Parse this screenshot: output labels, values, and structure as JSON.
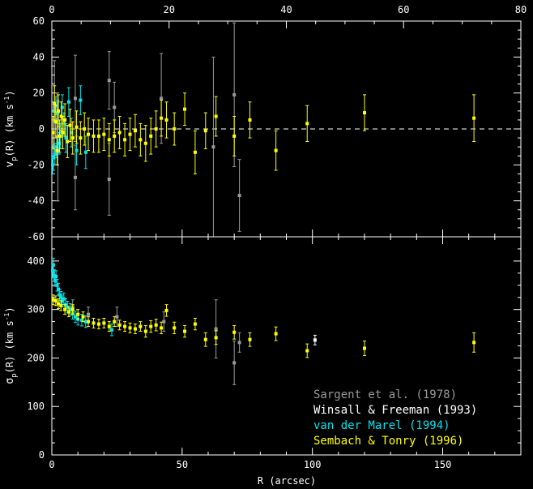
{
  "chart_data": [
    {
      "type": "scatter",
      "panel": "top",
      "ylabel_parts": {
        "main": "v",
        "sub": "p",
        "rest": "(R) (km s",
        "sup": "-1",
        "close": ")"
      },
      "xlim": [
        0,
        180
      ],
      "ylim": [
        -60,
        60
      ],
      "top_axis": {
        "xlim": [
          0,
          80
        ],
        "ticks": [
          "0",
          "20",
          "40",
          "60",
          "80"
        ]
      },
      "x_ticks": [
        0,
        50,
        100,
        150
      ],
      "y_ticks": [
        "-60",
        "-40",
        "-20",
        "0",
        "20",
        "40",
        "60"
      ],
      "reference_line": {
        "y": 0,
        "style": "dashed"
      },
      "series": [
        {
          "color": "#9a9a9a",
          "points": [
            {
              "x": 1,
              "y": 12,
              "e": 26
            },
            {
              "x": 2,
              "y": 5,
              "e": 15
            },
            {
              "x": 2.3,
              "y": -12,
              "e": 28
            },
            {
              "x": 9,
              "y": 17,
              "e": 24
            },
            {
              "x": 9,
              "y": -27,
              "e": 18
            },
            {
              "x": 22,
              "y": 27,
              "e": 16
            },
            {
              "x": 22,
              "y": -28,
              "e": 20
            },
            {
              "x": 24,
              "y": 12,
              "e": 14
            },
            {
              "x": 42,
              "y": 17,
              "e": 25
            },
            {
              "x": 62,
              "y": -10,
              "e": 50
            },
            {
              "x": 70,
              "y": 19,
              "e": 40
            },
            {
              "x": 72,
              "y": -37,
              "e": 20
            }
          ]
        },
        {
          "color": "#00e5ee",
          "points": [
            {
              "x": 0.3,
              "y": -20,
              "e": 5
            },
            {
              "x": 0.6,
              "y": -16,
              "e": 7
            },
            {
              "x": 0.9,
              "y": 10,
              "e": 5
            },
            {
              "x": 1.2,
              "y": -14,
              "e": 6
            },
            {
              "x": 1.5,
              "y": 13,
              "e": 5
            },
            {
              "x": 1.9,
              "y": -10,
              "e": 6
            },
            {
              "x": 2.3,
              "y": 9,
              "e": 6
            },
            {
              "x": 2.8,
              "y": -8,
              "e": 6
            },
            {
              "x": 3.4,
              "y": -4,
              "e": 7
            },
            {
              "x": 4,
              "y": 12,
              "e": 7
            },
            {
              "x": 4.6,
              "y": 3,
              "e": 6
            },
            {
              "x": 5.4,
              "y": -5,
              "e": 8
            },
            {
              "x": 6.5,
              "y": 15,
              "e": 8
            },
            {
              "x": 7.5,
              "y": -2,
              "e": 8
            },
            {
              "x": 9.5,
              "y": -12,
              "e": 8
            },
            {
              "x": 11,
              "y": 16,
              "e": 8
            },
            {
              "x": 13,
              "y": -13,
              "e": 9
            }
          ]
        },
        {
          "color": "#ffff00",
          "points": [
            {
              "x": 0.5,
              "y": -2,
              "e": 9
            },
            {
              "x": 1,
              "y": 14,
              "e": 10
            },
            {
              "x": 1.5,
              "y": 4,
              "e": 9
            },
            {
              "x": 2,
              "y": -12,
              "e": 8
            },
            {
              "x": 2.5,
              "y": 10,
              "e": 9
            },
            {
              "x": 3,
              "y": -4,
              "e": 9
            },
            {
              "x": 3.6,
              "y": 7,
              "e": 8
            },
            {
              "x": 4.2,
              "y": -2,
              "e": 9
            },
            {
              "x": 5,
              "y": 5,
              "e": 9
            },
            {
              "x": 6,
              "y": -7,
              "e": 9
            },
            {
              "x": 7,
              "y": 2,
              "e": 9
            },
            {
              "x": 8,
              "y": -5,
              "e": 9
            },
            {
              "x": 9.5,
              "y": 1,
              "e": 9
            },
            {
              "x": 11,
              "y": -5,
              "e": 9
            },
            {
              "x": 12.5,
              "y": 0,
              "e": 9
            },
            {
              "x": 14,
              "y": -3,
              "e": 9
            },
            {
              "x": 16,
              "y": -4,
              "e": 9
            },
            {
              "x": 18,
              "y": -4,
              "e": 9
            },
            {
              "x": 20,
              "y": -3,
              "e": 9
            },
            {
              "x": 22,
              "y": -6,
              "e": 9
            },
            {
              "x": 24,
              "y": -4,
              "e": 9
            },
            {
              "x": 26,
              "y": -2,
              "e": 9
            },
            {
              "x": 28,
              "y": -6,
              "e": 9
            },
            {
              "x": 30,
              "y": -3,
              "e": 9
            },
            {
              "x": 32,
              "y": -1,
              "e": 9
            },
            {
              "x": 34,
              "y": -6,
              "e": 9
            },
            {
              "x": 36,
              "y": -8,
              "e": 10
            },
            {
              "x": 38,
              "y": -4,
              "e": 10
            },
            {
              "x": 40,
              "y": 0,
              "e": 10
            },
            {
              "x": 42,
              "y": 6,
              "e": 10
            },
            {
              "x": 44,
              "y": 5,
              "e": 10
            },
            {
              "x": 47,
              "y": 0,
              "e": 9
            },
            {
              "x": 51,
              "y": 11,
              "e": 9
            },
            {
              "x": 55,
              "y": -13,
              "e": 12
            },
            {
              "x": 59,
              "y": -1,
              "e": 10
            },
            {
              "x": 63,
              "y": 7,
              "e": 11
            },
            {
              "x": 70,
              "y": -4,
              "e": 11
            },
            {
              "x": 76,
              "y": 5,
              "e": 10
            },
            {
              "x": 86,
              "y": -12,
              "e": 11
            },
            {
              "x": 98,
              "y": 3,
              "e": 10
            },
            {
              "x": 120,
              "y": 9,
              "e": 10
            },
            {
              "x": 162,
              "y": 6,
              "e": 13
            }
          ]
        }
      ]
    },
    {
      "type": "scatter",
      "panel": "bottom",
      "ylabel_parts": {
        "main": "σ",
        "sub": "p",
        "rest": "(R) (km s",
        "sup": "-1",
        "close": ")"
      },
      "xlabel": "R (arcsec)",
      "xlim": [
        0,
        180
      ],
      "ylim": [
        0,
        450
      ],
      "x_ticks": [
        "0",
        "50",
        "100",
        "150"
      ],
      "y_ticks": [
        "0",
        "100",
        "200",
        "300",
        "400"
      ],
      "series": [
        {
          "color": "#9a9a9a",
          "points": [
            {
              "x": 8,
              "y": 305,
              "e": 15
            },
            {
              "x": 14,
              "y": 290,
              "e": 15
            },
            {
              "x": 25,
              "y": 285,
              "e": 20
            },
            {
              "x": 43,
              "y": 275,
              "e": 20
            },
            {
              "x": 63,
              "y": 260,
              "e": 60
            },
            {
              "x": 70,
              "y": 190,
              "e": 45
            },
            {
              "x": 72,
              "y": 232,
              "e": 20
            }
          ]
        },
        {
          "color": "#ffffff",
          "points": [
            {
              "x": 101,
              "y": 237,
              "e": 10
            }
          ]
        },
        {
          "color": "#00e5ee",
          "points": [
            {
              "x": 0.3,
              "y": 380,
              "e": 15
            },
            {
              "x": 0.6,
              "y": 392,
              "e": 14
            },
            {
              "x": 0.9,
              "y": 370,
              "e": 12
            },
            {
              "x": 1.2,
              "y": 360,
              "e": 12
            },
            {
              "x": 1.6,
              "y": 368,
              "e": 12
            },
            {
              "x": 2,
              "y": 350,
              "e": 12
            },
            {
              "x": 2.5,
              "y": 342,
              "e": 12
            },
            {
              "x": 3,
              "y": 330,
              "e": 12
            },
            {
              "x": 3.5,
              "y": 325,
              "e": 12
            },
            {
              "x": 4,
              "y": 318,
              "e": 12
            },
            {
              "x": 4.6,
              "y": 322,
              "e": 12
            },
            {
              "x": 5.3,
              "y": 310,
              "e": 12
            },
            {
              "x": 6,
              "y": 305,
              "e": 12
            },
            {
              "x": 7,
              "y": 300,
              "e": 12
            },
            {
              "x": 8,
              "y": 292,
              "e": 12
            },
            {
              "x": 9,
              "y": 285,
              "e": 12
            },
            {
              "x": 10,
              "y": 280,
              "e": 12
            },
            {
              "x": 11.5,
              "y": 278,
              "e": 12
            },
            {
              "x": 13,
              "y": 275,
              "e": 12
            },
            {
              "x": 23,
              "y": 258,
              "e": 12
            }
          ]
        },
        {
          "color": "#ffff00",
          "points": [
            {
              "x": 0.5,
              "y": 320,
              "e": 10
            },
            {
              "x": 1.5,
              "y": 318,
              "e": 10
            },
            {
              "x": 2.5,
              "y": 312,
              "e": 10
            },
            {
              "x": 3.5,
              "y": 308,
              "e": 10
            },
            {
              "x": 5,
              "y": 300,
              "e": 10
            },
            {
              "x": 6.5,
              "y": 295,
              "e": 10
            },
            {
              "x": 8,
              "y": 300,
              "e": 10
            },
            {
              "x": 10,
              "y": 290,
              "e": 10
            },
            {
              "x": 12,
              "y": 285,
              "e": 10
            },
            {
              "x": 14,
              "y": 275,
              "e": 10
            },
            {
              "x": 16,
              "y": 272,
              "e": 10
            },
            {
              "x": 18,
              "y": 270,
              "e": 10
            },
            {
              "x": 20,
              "y": 272,
              "e": 10
            },
            {
              "x": 22,
              "y": 265,
              "e": 10
            },
            {
              "x": 24,
              "y": 275,
              "e": 10
            },
            {
              "x": 26,
              "y": 268,
              "e": 10
            },
            {
              "x": 28,
              "y": 265,
              "e": 10
            },
            {
              "x": 30,
              "y": 262,
              "e": 10
            },
            {
              "x": 32,
              "y": 260,
              "e": 10
            },
            {
              "x": 34,
              "y": 265,
              "e": 10
            },
            {
              "x": 36,
              "y": 255,
              "e": 12
            },
            {
              "x": 38,
              "y": 265,
              "e": 12
            },
            {
              "x": 40,
              "y": 268,
              "e": 12
            },
            {
              "x": 42,
              "y": 262,
              "e": 12
            },
            {
              "x": 44,
              "y": 298,
              "e": 12
            },
            {
              "x": 47,
              "y": 262,
              "e": 12
            },
            {
              "x": 51,
              "y": 255,
              "e": 12
            },
            {
              "x": 55,
              "y": 270,
              "e": 12
            },
            {
              "x": 59,
              "y": 238,
              "e": 14
            },
            {
              "x": 63,
              "y": 242,
              "e": 14
            },
            {
              "x": 70,
              "y": 253,
              "e": 14
            },
            {
              "x": 76,
              "y": 238,
              "e": 14
            },
            {
              "x": 86,
              "y": 250,
              "e": 14
            },
            {
              "x": 98,
              "y": 215,
              "e": 14
            },
            {
              "x": 120,
              "y": 220,
              "e": 15
            },
            {
              "x": 162,
              "y": 232,
              "e": 20
            }
          ]
        }
      ],
      "legend": {
        "position": "bottom-right",
        "entries": [
          {
            "text": "Sargent et al. (1978)",
            "color": "#9a9a9a"
          },
          {
            "text": "Winsall & Freeman (1993)",
            "color": "#ffffff"
          },
          {
            "text": "van der Marel (1994)",
            "color": "#00e5ee"
          },
          {
            "text": "Sembach & Tonry (1996)",
            "color": "#ffff00"
          }
        ]
      }
    }
  ]
}
